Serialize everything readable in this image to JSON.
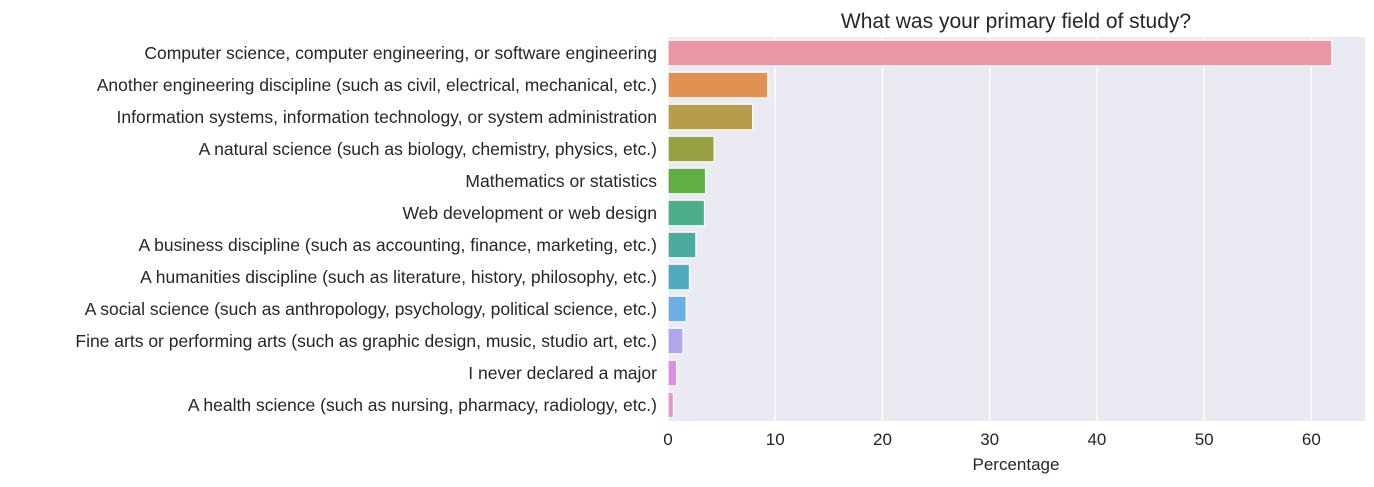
{
  "chart_data": {
    "type": "bar",
    "orientation": "horizontal",
    "title": "What was your primary field of study?",
    "xlabel": "Percentage",
    "ylabel": "",
    "xlim": [
      0,
      65
    ],
    "xticks": [
      0,
      10,
      20,
      30,
      40,
      50,
      60
    ],
    "grid": true,
    "categories": [
      "Computer science, computer engineering, or software engineering",
      "Another engineering discipline (such as civil, electrical, mechanical, etc.)",
      "Information systems, information technology, or system administration",
      "A natural science (such as biology, chemistry, physics, etc.)",
      "Mathematics or statistics",
      "Web development or web design",
      "A business discipline (such as accounting, finance, marketing, etc.)",
      "A humanities discipline (such as literature, history, philosophy, etc.)",
      "A social science (such as anthropology, psychology, political science, etc.)",
      "Fine arts or performing arts (such as graphic design, music, studio art, etc.)",
      "I never declared a major",
      "A health science (such as nursing, pharmacy, radiology, etc.)"
    ],
    "values": [
      61.9,
      9.3,
      7.9,
      4.3,
      3.5,
      3.4,
      2.6,
      2.0,
      1.7,
      1.4,
      0.8,
      0.5
    ],
    "colors": [
      "#ea96a3",
      "#e19153",
      "#b69c4b",
      "#98a046",
      "#61ae47",
      "#4bb08a",
      "#4cab9f",
      "#4eabbf",
      "#6daee3",
      "#b3a5eb",
      "#e18de6",
      "#e895c9"
    ]
  },
  "style": {
    "plot_bg": "#eaeaf2",
    "grid": "#ffffff"
  }
}
